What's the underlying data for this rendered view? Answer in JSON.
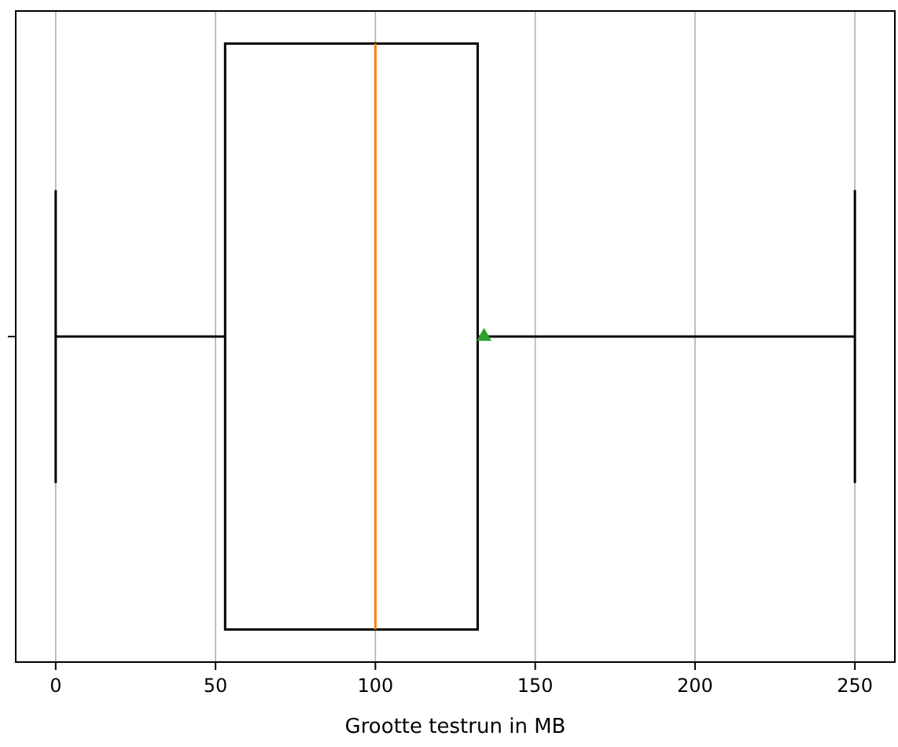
{
  "chart_data": {
    "type": "box",
    "orientation": "horizontal",
    "categories": [
      null
    ],
    "series": [
      {
        "color": "#000000",
        "boxes": [
          {
            "low": 0,
            "q1": 53,
            "median": 100,
            "q3": 132,
            "high": 250,
            "mean": 134
          }
        ]
      }
    ],
    "xlabel": "Grootte testrun in MB",
    "xlim": [
      -12.5,
      262.5
    ],
    "xticks": [
      0,
      50,
      100,
      150,
      200,
      250
    ],
    "grid": "x",
    "marker": "triangle"
  }
}
